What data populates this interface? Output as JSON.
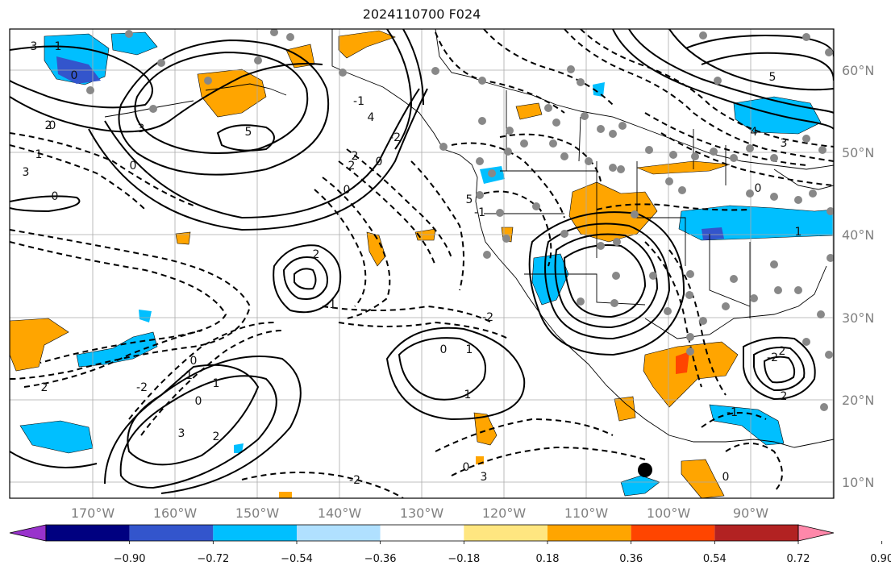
{
  "title": "2024110700 F024",
  "longitude_labels": [
    "170°W",
    "160°W",
    "150°W",
    "140°W",
    "130°W",
    "120°W",
    "110°W",
    "100°W",
    "90°W"
  ],
  "latitude_labels": [
    "60°N",
    "50°N",
    "40°N",
    "30°N",
    "20°N",
    "10°N"
  ],
  "colorbar": {
    "tick_labels": [
      "−0.90",
      "−0.72",
      "−0.54",
      "−0.36",
      "−0.18",
      "0.18",
      "0.36",
      "0.54",
      "0.72",
      "0.90"
    ],
    "colors": [
      "#9933cc",
      "#000080",
      "#3355cc",
      "#00bfff",
      "#b0e0ff",
      "#ffffff",
      "#ffe680",
      "#ffa500",
      "#ff4500",
      "#b22222",
      "#ff88aa"
    ]
  },
  "contour_labels": [
    "3",
    "1",
    "0",
    "2",
    "5",
    "3",
    "0",
    "4",
    "2",
    "0",
    "-2",
    "0",
    "1",
    "3",
    "0",
    "-1",
    "0",
    "2",
    "2",
    "1",
    "-1",
    "-2",
    "2",
    "0",
    "-1",
    "1",
    "3",
    "-2",
    "0",
    "2",
    "5",
    "3",
    "4",
    "2",
    "0",
    "1",
    "-2",
    "-1",
    "1",
    "0",
    "3",
    "5",
    "0",
    "-2",
    "2",
    "-1",
    "0"
  ],
  "colors": {
    "positive": "#ffa500",
    "negative": "#00bfff",
    "contour": "#000000",
    "grid": "#aaaaaa",
    "stations": "#888888"
  }
}
